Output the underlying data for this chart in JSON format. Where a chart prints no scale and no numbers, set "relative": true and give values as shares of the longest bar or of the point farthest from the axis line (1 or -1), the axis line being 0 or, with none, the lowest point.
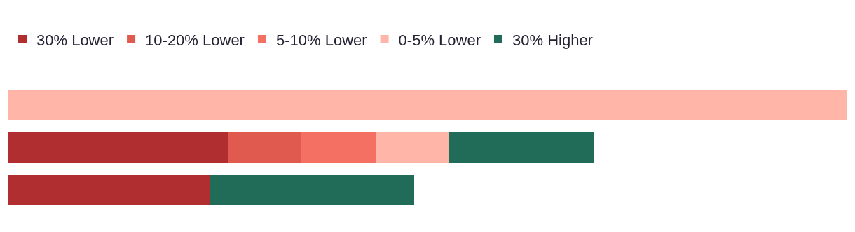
{
  "chart_data": {
    "type": "bar",
    "orientation": "horizontal",
    "stacked": true,
    "relative": true,
    "legend": "top left",
    "categories": [
      null,
      null,
      null
    ],
    "series": [
      {
        "name": "30% Lower",
        "color": "#b02e30",
        "values": [
          null,
          0.262,
          0.241
        ]
      },
      {
        "name": "10-20% Lower",
        "color": "#e05a4f",
        "values": [
          null,
          0.087,
          null
        ]
      },
      {
        "name": "5-10% Lower",
        "color": "#f47063",
        "values": [
          null,
          0.089,
          null
        ]
      },
      {
        "name": "0-5% Lower",
        "color": "#ffb5a7",
        "values": [
          1,
          0.087,
          null
        ]
      },
      {
        "name": "30% Higher",
        "color": "#216c58",
        "values": [
          null,
          0.174,
          0.243
        ]
      }
    ]
  }
}
